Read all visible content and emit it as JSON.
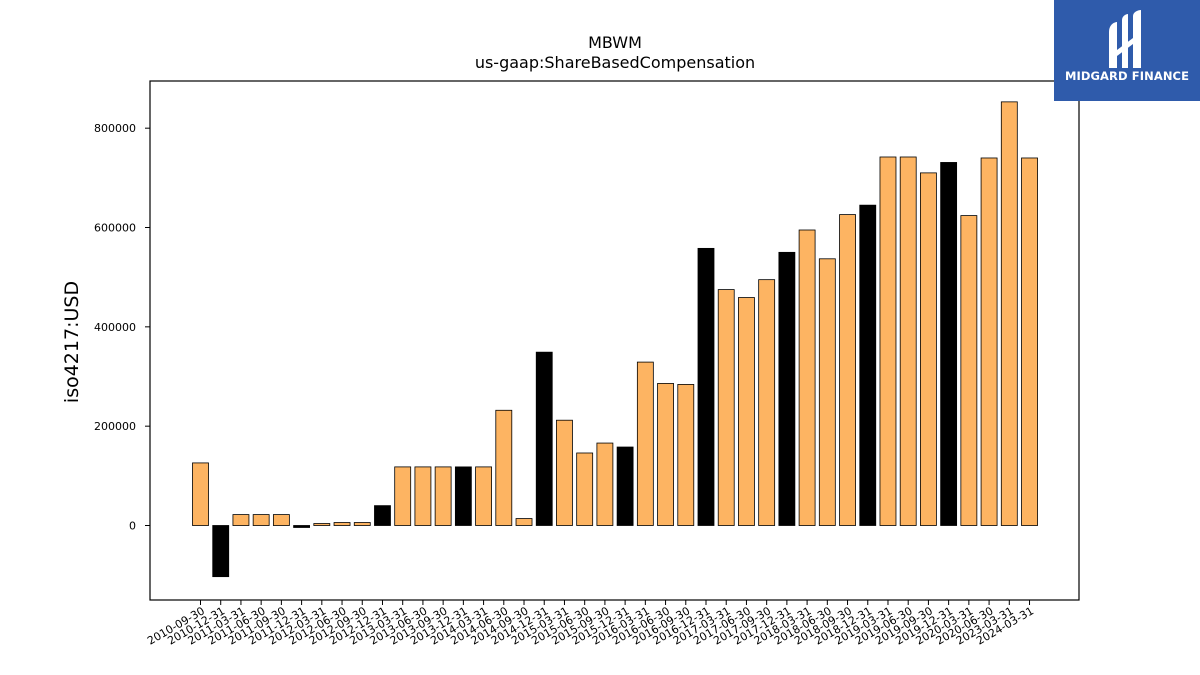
{
  "logo": {
    "text": "MIDGARD FINANCE"
  },
  "colors": {
    "bar": "#fdb462",
    "highlight": "#000000",
    "edge": "#000000"
  },
  "chart_data": {
    "type": "bar",
    "title": "MBWM",
    "subtitle": "us-gaap:ShareBasedCompensation",
    "xlabel": "",
    "ylabel": "iso4217:USD",
    "ylim": [
      -150000,
      895000
    ],
    "yticks": [
      0,
      200000,
      400000,
      600000,
      800000
    ],
    "grid": false,
    "categories": [
      "2010-09-30",
      "2010-12-31",
      "2011-03-31",
      "2011-06-30",
      "2011-09-30",
      "2011-12-31",
      "2012-03-31",
      "2012-06-30",
      "2012-09-30",
      "2012-12-31",
      "2013-03-31",
      "2013-06-30",
      "2013-09-30",
      "2013-12-31",
      "2014-03-31",
      "2014-06-30",
      "2014-09-30",
      "2014-12-31",
      "2015-03-31",
      "2015-06-30",
      "2015-09-30",
      "2015-12-31",
      "2016-03-31",
      "2016-06-30",
      "2016-09-30",
      "2016-12-31",
      "2017-03-31",
      "2017-06-30",
      "2017-09-30",
      "2017-12-31",
      "2018-03-31",
      "2018-06-30",
      "2018-09-30",
      "2018-12-31",
      "2019-03-31",
      "2019-06-30",
      "2019-09-30",
      "2019-12-31",
      "2020-03-31",
      "2020-06-30",
      "2023-03-31",
      "2024-03-31"
    ],
    "values": [
      126000,
      -103000,
      22000,
      22000,
      22000,
      -4000,
      4000,
      6000,
      6000,
      40000,
      118000,
      118000,
      118000,
      118000,
      118000,
      232000,
      14000,
      349000,
      212000,
      146000,
      166000,
      158000,
      329000,
      286000,
      284000,
      558000,
      475000,
      459000,
      495000,
      550000,
      595000,
      537000,
      626000,
      645000,
      742000,
      742000,
      710000,
      731000,
      624000,
      740000,
      853000,
      740000
    ],
    "highlighted": [
      false,
      true,
      false,
      false,
      false,
      true,
      false,
      false,
      false,
      true,
      false,
      false,
      false,
      true,
      false,
      false,
      false,
      true,
      false,
      false,
      false,
      true,
      false,
      false,
      false,
      true,
      false,
      false,
      false,
      true,
      false,
      false,
      false,
      true,
      false,
      false,
      false,
      true,
      false,
      false,
      false,
      false
    ]
  }
}
